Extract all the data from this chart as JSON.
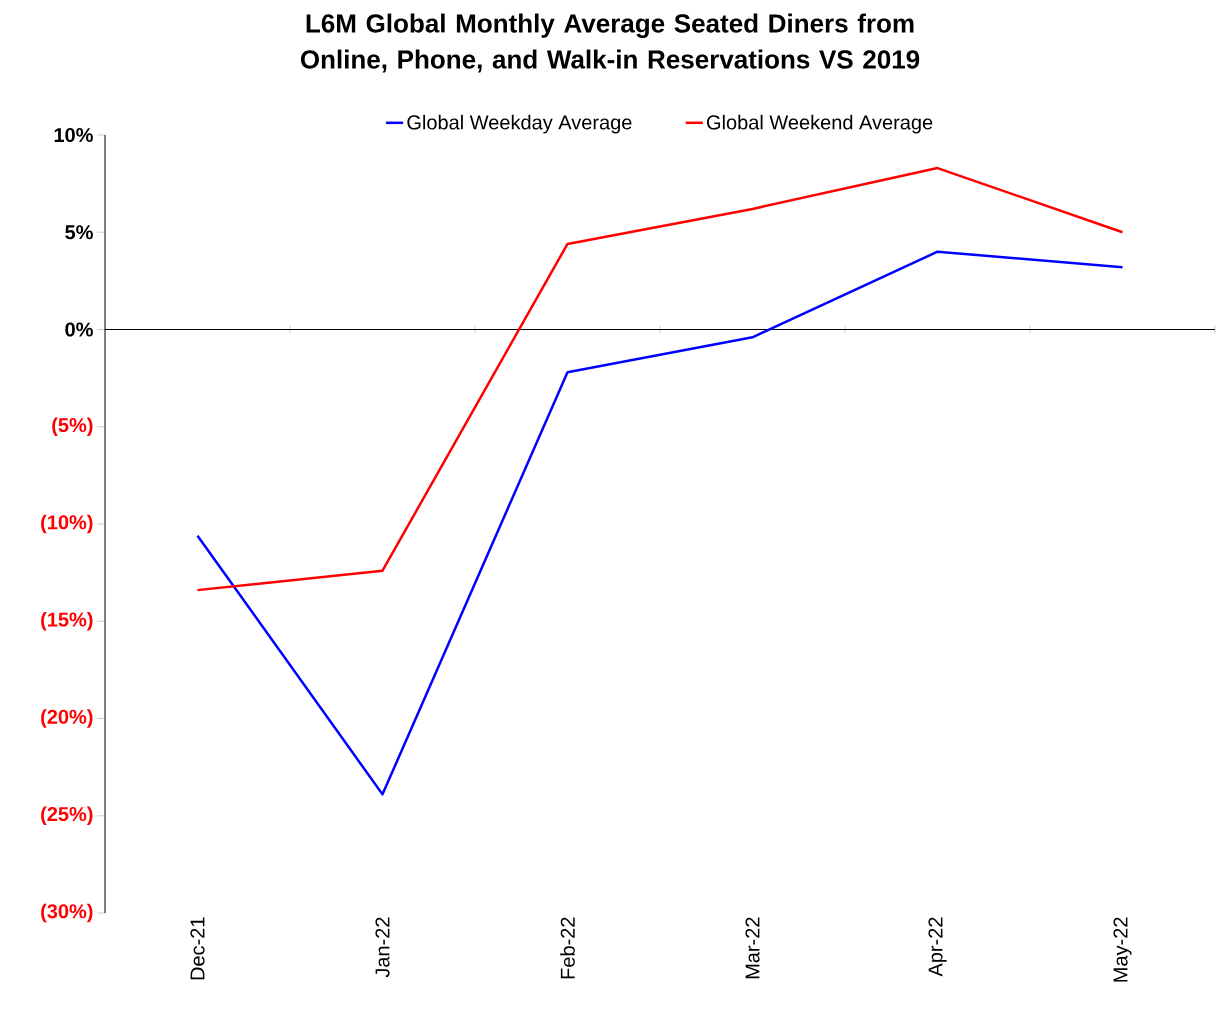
{
  "chart_data": {
    "type": "line",
    "title": "L6M Global Monthly Average Seated Diners from Online, Phone, and Walk-in Reservations VS 2019",
    "categories": [
      "Dec-21",
      "Jan-22",
      "Feb-22",
      "Mar-22",
      "Apr-22",
      "May-22"
    ],
    "series": [
      {
        "name": "Global Weekday Average",
        "color": "#0000ff",
        "values": [
          -10.6,
          -23.9,
          -2.2,
          -0.4,
          4.0,
          3.2
        ]
      },
      {
        "name": "Global Weekend Average",
        "color": "#ff0000",
        "values": [
          -13.4,
          -12.4,
          4.4,
          6.2,
          8.3,
          5.0
        ]
      }
    ],
    "ylim": [
      -30,
      10
    ],
    "yticks": [
      {
        "value": -30,
        "label": "(30%)"
      },
      {
        "value": -25,
        "label": "(25%)"
      },
      {
        "value": -20,
        "label": "(20%)"
      },
      {
        "value": -15,
        "label": "(15%)"
      },
      {
        "value": -10,
        "label": "(10%)"
      },
      {
        "value": -5,
        "label": "(5%)"
      },
      {
        "value": 0,
        "label": "0%"
      },
      {
        "value": 5,
        "label": "5%"
      },
      {
        "value": 10,
        "label": "10%"
      }
    ],
    "legend": "top",
    "marker": "none",
    "line_style": "solid"
  }
}
